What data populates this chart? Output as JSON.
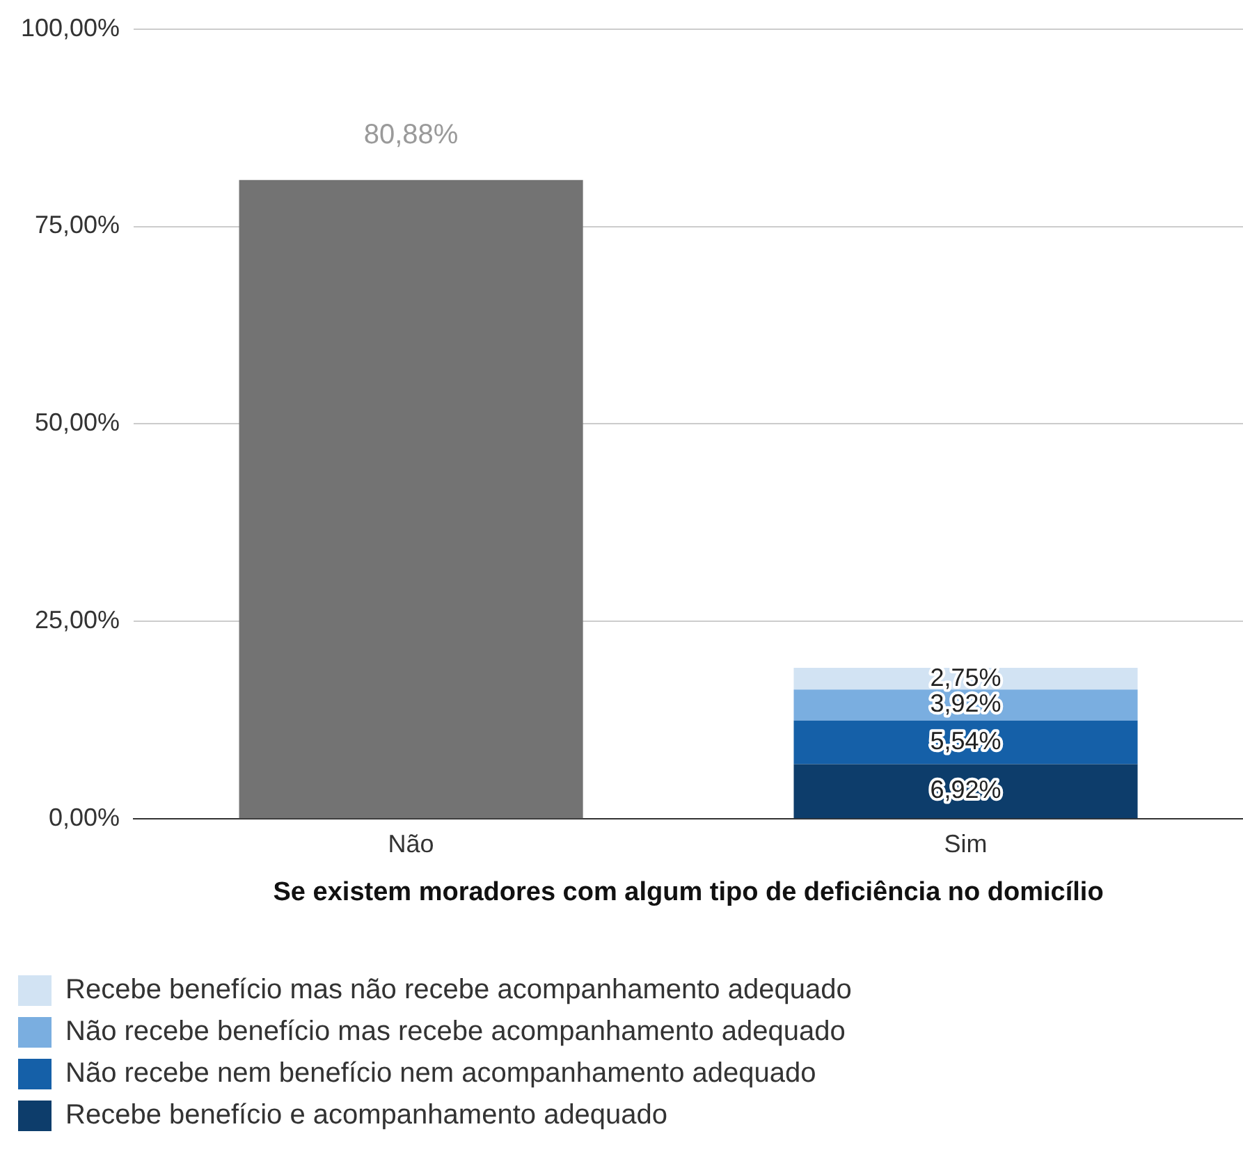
{
  "chart_data": {
    "type": "bar",
    "xlabel": "Se existem moradores com algum tipo de deficiência no domicílio",
    "categories": [
      "Não",
      "Sim"
    ],
    "stacked": true,
    "grid": "y",
    "legend": "bottom",
    "data_labels": true,
    "ylim": [
      0,
      100
    ],
    "yticks": [
      {
        "value": 0,
        "label": "0,00%"
      },
      {
        "value": 25,
        "label": "25,00%"
      },
      {
        "value": 50,
        "label": "50,00%"
      },
      {
        "value": 75,
        "label": "75,00%"
      },
      {
        "value": 100,
        "label": "100,00%"
      }
    ],
    "series": [
      {
        "color": "#737373",
        "values": [
          80.88,
          null
        ],
        "value_labels": [
          "80,88%",
          null
        ]
      },
      {
        "name": "Recebe benefício e acompanhamento adequado",
        "color": "#0d3d6b",
        "values": [
          null,
          6.92
        ],
        "value_labels": [
          null,
          "6,92%"
        ]
      },
      {
        "name": "Não recebe nem benefício nem acompanhamento adequado",
        "color": "#1560a8",
        "values": [
          null,
          5.54
        ],
        "value_labels": [
          null,
          "5,54%"
        ]
      },
      {
        "name": "Não recebe benefício mas recebe acompanhamento adequado",
        "color": "#7aaee0",
        "values": [
          null,
          3.92
        ],
        "value_labels": [
          null,
          "3,92%"
        ]
      },
      {
        "name": "Recebe benefício mas não recebe acompanhamento adequado",
        "color": "#d2e3f3",
        "values": [
          null,
          2.75
        ],
        "value_labels": [
          null,
          "2,75%"
        ]
      }
    ]
  }
}
